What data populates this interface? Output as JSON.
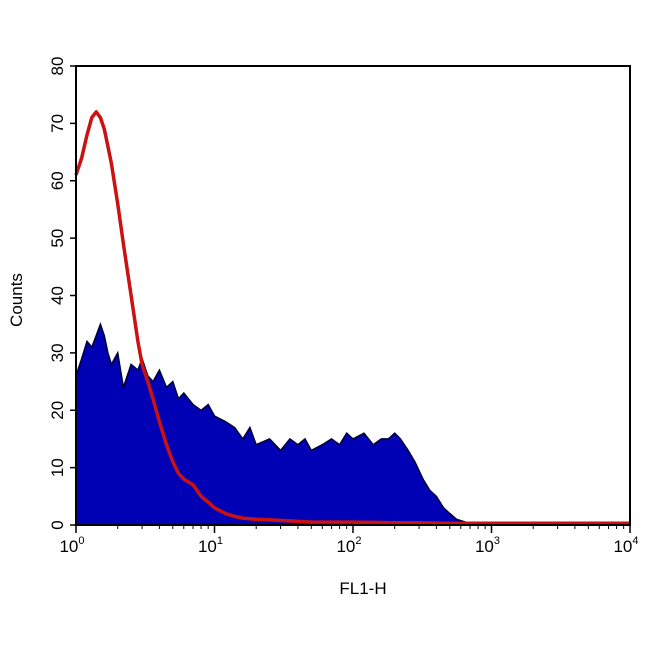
{
  "chart_data": {
    "type": "area",
    "xlabel": "FL1-H",
    "ylabel": "Counts",
    "xscale": "log",
    "xlim": [
      1,
      10000
    ],
    "ylim": [
      0,
      80
    ],
    "grid": false,
    "colors": {
      "filled": "#0000b4",
      "filled_edge": "#000033",
      "overlay": "#cc1111"
    },
    "x_ticks": [
      {
        "base": "10",
        "exp": "0"
      },
      {
        "base": "10",
        "exp": "1"
      },
      {
        "base": "10",
        "exp": "2"
      },
      {
        "base": "10",
        "exp": "3"
      },
      {
        "base": "10",
        "exp": "4"
      }
    ],
    "y_ticks": [
      "0",
      "10",
      "20",
      "30",
      "40",
      "50",
      "60",
      "70",
      "80"
    ],
    "series": [
      {
        "style": "filled",
        "points": [
          [
            1.0,
            26
          ],
          [
            1.1,
            29
          ],
          [
            1.2,
            32
          ],
          [
            1.3,
            31
          ],
          [
            1.4,
            33
          ],
          [
            1.5,
            35
          ],
          [
            1.6,
            33
          ],
          [
            1.7,
            30
          ],
          [
            1.8,
            28
          ],
          [
            2.0,
            30
          ],
          [
            2.2,
            24
          ],
          [
            2.5,
            28
          ],
          [
            2.8,
            27
          ],
          [
            3.0,
            29
          ],
          [
            3.3,
            26
          ],
          [
            3.6,
            25
          ],
          [
            4.0,
            27
          ],
          [
            4.5,
            24
          ],
          [
            5.0,
            25
          ],
          [
            5.5,
            22
          ],
          [
            6.0,
            23
          ],
          [
            7.0,
            21
          ],
          [
            8.0,
            20
          ],
          [
            9.0,
            21
          ],
          [
            10,
            19
          ],
          [
            12,
            18
          ],
          [
            14,
            17
          ],
          [
            16,
            15
          ],
          [
            18,
            17
          ],
          [
            20,
            14
          ],
          [
            25,
            15
          ],
          [
            30,
            13
          ],
          [
            35,
            15
          ],
          [
            40,
            14
          ],
          [
            45,
            15
          ],
          [
            50,
            13
          ],
          [
            60,
            14
          ],
          [
            70,
            15
          ],
          [
            80,
            14
          ],
          [
            90,
            16
          ],
          [
            100,
            15
          ],
          [
            120,
            16
          ],
          [
            140,
            14
          ],
          [
            160,
            15
          ],
          [
            180,
            15
          ],
          [
            200,
            16
          ],
          [
            220,
            15
          ],
          [
            250,
            13
          ],
          [
            280,
            11
          ],
          [
            320,
            8
          ],
          [
            360,
            6
          ],
          [
            400,
            5
          ],
          [
            450,
            3
          ],
          [
            500,
            2
          ],
          [
            560,
            1
          ],
          [
            650,
            0.5
          ],
          [
            800,
            0.3
          ],
          [
            1000,
            0.2
          ],
          [
            2000,
            0.1
          ],
          [
            5000,
            0.1
          ],
          [
            10000,
            0.2
          ]
        ]
      },
      {
        "style": "line",
        "points": [
          [
            1.0,
            61
          ],
          [
            1.1,
            64
          ],
          [
            1.2,
            68
          ],
          [
            1.3,
            71
          ],
          [
            1.4,
            72
          ],
          [
            1.5,
            71
          ],
          [
            1.6,
            69
          ],
          [
            1.7,
            66
          ],
          [
            1.8,
            63
          ],
          [
            2.0,
            56
          ],
          [
            2.2,
            49
          ],
          [
            2.5,
            40
          ],
          [
            2.8,
            32
          ],
          [
            3.0,
            28
          ],
          [
            3.3,
            25
          ],
          [
            3.6,
            22
          ],
          [
            4.0,
            18
          ],
          [
            4.5,
            14
          ],
          [
            5.0,
            11
          ],
          [
            5.5,
            9
          ],
          [
            6.0,
            8
          ],
          [
            7.0,
            7
          ],
          [
            8.0,
            5
          ],
          [
            9.0,
            4
          ],
          [
            10,
            3
          ],
          [
            12,
            2
          ],
          [
            14,
            1.5
          ],
          [
            16,
            1.2
          ],
          [
            20,
            1
          ],
          [
            30,
            0.8
          ],
          [
            50,
            0.5
          ],
          [
            100,
            0.5
          ],
          [
            200,
            0.4
          ],
          [
            300,
            0.4
          ],
          [
            500,
            0.3
          ],
          [
            1000,
            0.3
          ],
          [
            10000,
            0.3
          ]
        ]
      }
    ]
  }
}
